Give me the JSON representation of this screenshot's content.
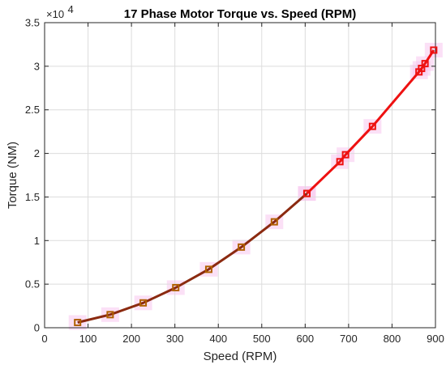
{
  "chart_data": {
    "type": "line",
    "title": "17 Phase Motor Torque vs. Speed (RPM)",
    "xlabel": "Speed (RPM)",
    "ylabel": "Torque (NM)",
    "xlim": [
      0,
      900
    ],
    "ylim": [
      0,
      35000
    ],
    "xticks": [
      0,
      100,
      200,
      300,
      400,
      500,
      600,
      700,
      800,
      900
    ],
    "yticks": [
      0,
      5000,
      10000,
      15000,
      20000,
      25000,
      30000,
      35000
    ],
    "xtick_labels": [
      "0",
      "100",
      "200",
      "300",
      "400",
      "500",
      "600",
      "700",
      "800",
      "900"
    ],
    "ytick_labels": [
      "0",
      "0.5",
      "1",
      "1.5",
      "2",
      "2.5",
      "3",
      "3.5"
    ],
    "y_exponent_base": "×10",
    "y_exponent_power": "4",
    "grid": true,
    "series": [
      {
        "color": "#8b2a10",
        "marker": "square",
        "marker_color": "#b06000",
        "x": [
          76,
          151,
          227,
          302,
          378,
          453,
          529,
          604
        ],
        "y": [
          600,
          1500,
          2850,
          4600,
          6700,
          9250,
          12150,
          15400
        ]
      },
      {
        "color": "#ee1111",
        "marker": "square",
        "marker_color": "#ee1111",
        "x": [
          604,
          680,
          693,
          755,
          862,
          868,
          876,
          896
        ],
        "y": [
          15400,
          19050,
          19850,
          23100,
          29350,
          29750,
          30300,
          31850
        ]
      }
    ]
  }
}
